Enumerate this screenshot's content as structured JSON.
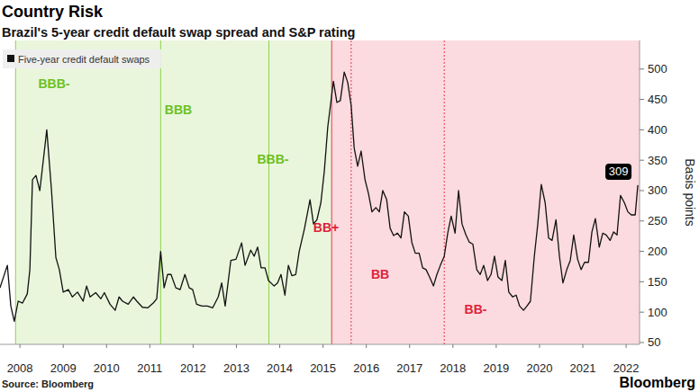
{
  "chart_data": {
    "type": "line",
    "title": "Country Risk",
    "subtitle": "Brazil's 5-year credit default swap spread and S&P rating",
    "source": "Source: Bloomberg",
    "logo": "Bloomberg",
    "ylabel": "Basis points",
    "legend": "top-left",
    "grid": false,
    "xlim": [
      2008.04,
      2022.81
    ],
    "xticks": [
      {
        "value": 2008.5,
        "label": "2008"
      },
      {
        "value": 2009.5,
        "label": "2009"
      },
      {
        "value": 2010.5,
        "label": "2010"
      },
      {
        "value": 2011.5,
        "label": "2011"
      },
      {
        "value": 2012.5,
        "label": "2012"
      },
      {
        "value": 2013.5,
        "label": "2013"
      },
      {
        "value": 2014.5,
        "label": "2014"
      },
      {
        "value": 2015.5,
        "label": "2015"
      },
      {
        "value": 2016.5,
        "label": "2016"
      },
      {
        "value": 2017.5,
        "label": "2017"
      },
      {
        "value": 2018.5,
        "label": "2018"
      },
      {
        "value": 2019.5,
        "label": "2019"
      },
      {
        "value": 2020.5,
        "label": "2020"
      },
      {
        "value": 2021.5,
        "label": "2021"
      },
      {
        "value": 2022.5,
        "label": "2022"
      }
    ],
    "ylim": [
      47,
      547
    ],
    "yticks": [
      50,
      100,
      150,
      200,
      250,
      300,
      350,
      400,
      450,
      500
    ],
    "annotations": [
      {
        "x": 2008.4,
        "label": "BBB-",
        "color": "#8fd14f",
        "line_style": "solid"
      },
      {
        "x": 2011.75,
        "label": "BBB",
        "color": "#8fd14f",
        "line_style": "solid"
      },
      {
        "x": 2014.25,
        "label": "BBB-",
        "color": "#8fd14f",
        "line_style": "solid"
      },
      {
        "x": 2015.7,
        "label": "BB+",
        "color": "#e8354e",
        "line_style": "solid"
      },
      {
        "x": 2016.15,
        "label": "BB",
        "color": "#e8354e",
        "line_style": "dotted"
      },
      {
        "x": 2018.3,
        "label": "BB-",
        "color": "#e8354e",
        "line_style": "dotted"
      }
    ],
    "x": [
      2008.04,
      2008.21,
      2008.29,
      2008.37,
      2008.46,
      2008.56,
      2008.67,
      2008.73,
      2008.79,
      2008.87,
      2008.96,
      2009.12,
      2009.23,
      2009.33,
      2009.41,
      2009.5,
      2009.62,
      2009.71,
      2009.83,
      2009.96,
      2010.04,
      2010.12,
      2010.25,
      2010.37,
      2010.45,
      2010.58,
      2010.7,
      2010.79,
      2010.87,
      2011.0,
      2011.12,
      2011.2,
      2011.33,
      2011.45,
      2011.58,
      2011.66,
      2011.75,
      2011.83,
      2011.91,
      2011.99,
      2012.1,
      2012.2,
      2012.31,
      2012.41,
      2012.49,
      2012.58,
      2012.7,
      2012.83,
      2012.95,
      2013.08,
      2013.16,
      2013.24,
      2013.37,
      2013.49,
      2013.62,
      2013.7,
      2013.83,
      2013.91,
      2013.99,
      2014.07,
      2014.16,
      2014.24,
      2014.37,
      2014.45,
      2014.53,
      2014.62,
      2014.7,
      2014.78,
      2014.87,
      2014.95,
      2015.07,
      2015.2,
      2015.28,
      2015.36,
      2015.45,
      2015.53,
      2015.61,
      2015.74,
      2015.82,
      2015.9,
      2015.99,
      2016.07,
      2016.15,
      2016.22,
      2016.3,
      2016.38,
      2016.47,
      2016.55,
      2016.63,
      2016.72,
      2016.8,
      2016.88,
      2016.97,
      2017.05,
      2017.13,
      2017.22,
      2017.3,
      2017.38,
      2017.47,
      2017.55,
      2017.63,
      2017.72,
      2017.8,
      2017.88,
      2017.96,
      2018.05,
      2018.13,
      2018.21,
      2018.3,
      2018.38,
      2018.46,
      2018.55,
      2018.63,
      2018.71,
      2018.8,
      2018.88,
      2018.96,
      2019.05,
      2019.13,
      2019.21,
      2019.3,
      2019.38,
      2019.46,
      2019.54,
      2019.63,
      2019.71,
      2019.79,
      2019.88,
      2019.96,
      2020.04,
      2020.13,
      2020.21,
      2020.29,
      2020.38,
      2020.46,
      2020.54,
      2020.63,
      2020.71,
      2020.79,
      2020.88,
      2020.96,
      2021.04,
      2021.13,
      2021.21,
      2021.29,
      2021.38,
      2021.46,
      2021.54,
      2021.63,
      2021.71,
      2021.79,
      2021.88,
      2021.96,
      2022.04,
      2022.13,
      2022.21,
      2022.29,
      2022.37,
      2022.46,
      2022.54,
      2022.62,
      2022.71,
      2022.77
    ],
    "series": [
      {
        "name": "Five-year credit default swaps",
        "color": "#111111",
        "values": [
          140,
          177,
          110,
          85,
          118,
          115,
          130,
          170,
          318,
          325,
          300,
          400,
          300,
          190,
          170,
          133,
          137,
          125,
          133,
          118,
          143,
          125,
          132,
          122,
          132,
          113,
          103,
          125,
          118,
          113,
          125,
          118,
          108,
          107,
          115,
          122,
          200,
          140,
          162,
          162,
          140,
          137,
          162,
          140,
          137,
          113,
          110,
          110,
          107,
          125,
          148,
          110,
          185,
          187,
          214,
          177,
          202,
          192,
          207,
          173,
          173,
          152,
          143,
          148,
          162,
          128,
          177,
          160,
          162,
          200,
          237,
          285,
          245,
          252,
          280,
          332,
          405,
          480,
          445,
          448,
          495,
          478,
          440,
          370,
          340,
          365,
          318,
          295,
          265,
          272,
          265,
          300,
          285,
          238,
          226,
          230,
          222,
          265,
          258,
          215,
          197,
          197,
          173,
          170,
          158,
          143,
          162,
          177,
          192,
          230,
          258,
          230,
          300,
          245,
          227,
          215,
          212,
          170,
          162,
          177,
          152,
          162,
          192,
          158,
          152,
          185,
          133,
          125,
          128,
          110,
          103,
          110,
          118,
          192,
          245,
          310,
          280,
          222,
          218,
          252,
          192,
          148,
          170,
          185,
          227,
          187,
          170,
          182,
          182,
          232,
          254,
          207,
          230,
          227,
          218,
          232,
          227,
          292,
          280,
          265,
          260,
          260,
          309
        ]
      }
    ]
  }
}
